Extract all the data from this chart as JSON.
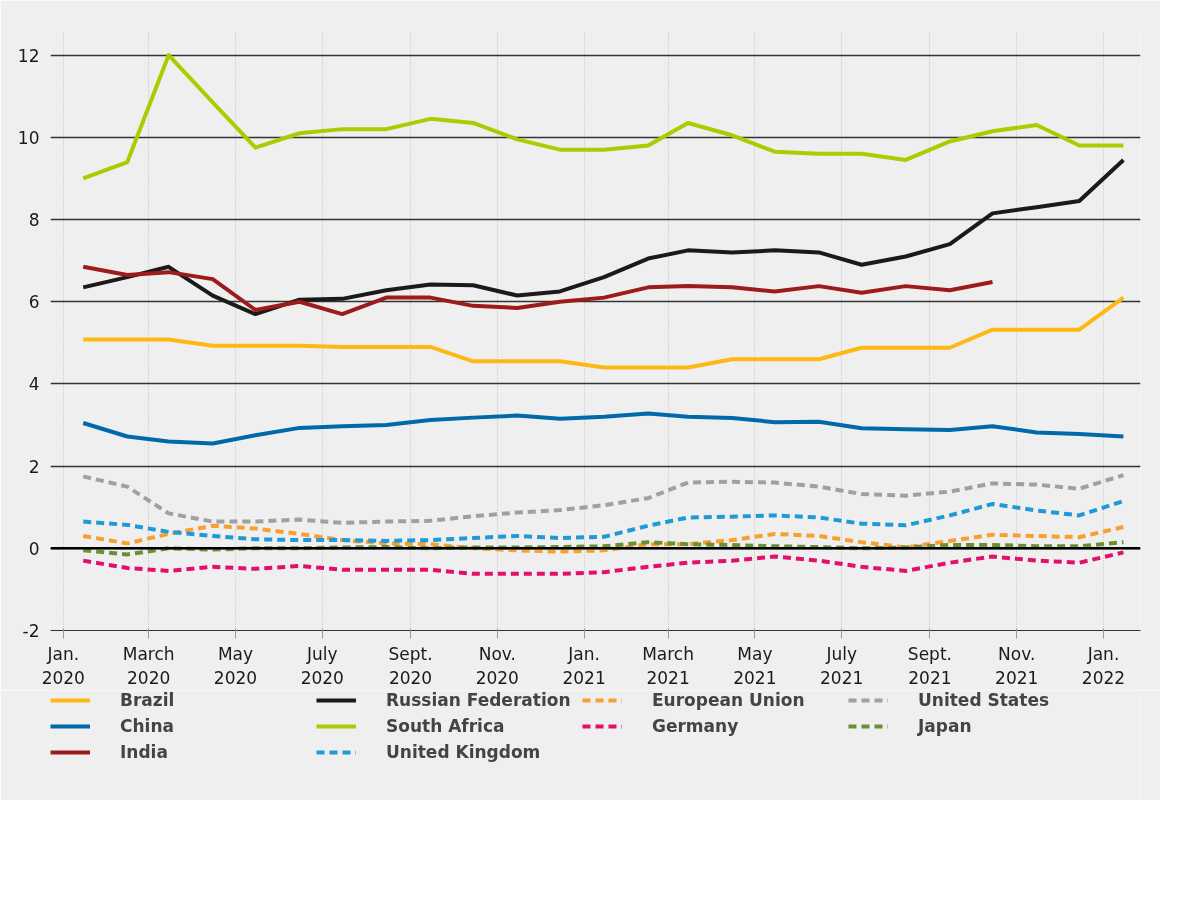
{
  "chart_data": {
    "type": "line",
    "x": [
      "2020-01-15",
      "2020-02-15",
      "2020-03-15",
      "2020-04-15",
      "2020-05-15",
      "2020-06-15",
      "2020-07-15",
      "2020-08-15",
      "2020-09-15",
      "2020-10-15",
      "2020-11-15",
      "2020-12-15",
      "2021-01-15",
      "2021-02-15",
      "2021-03-15",
      "2021-04-15",
      "2021-05-15",
      "2021-06-15",
      "2021-07-15",
      "2021-08-15",
      "2021-09-15",
      "2021-10-15",
      "2021-11-15",
      "2021-12-15",
      "2022-01-15"
    ],
    "xlim": [
      "2019-12-23",
      "2022-01-27"
    ],
    "xticks": [
      {
        "value": "2020-01-01",
        "label": "Jan.\n2020"
      },
      {
        "value": "2020-03-01",
        "label": "March\n2020"
      },
      {
        "value": "2020-05-01",
        "label": "May\n2020"
      },
      {
        "value": "2020-07-01",
        "label": "July\n2020"
      },
      {
        "value": "2020-09-01",
        "label": "Sept.\n2020"
      },
      {
        "value": "2020-11-01",
        "label": "Nov.\n2020"
      },
      {
        "value": "2021-01-01",
        "label": "Jan.\n2021"
      },
      {
        "value": "2021-03-01",
        "label": "March\n2021"
      },
      {
        "value": "2021-05-01",
        "label": "May\n2021"
      },
      {
        "value": "2021-07-01",
        "label": "July\n2021"
      },
      {
        "value": "2021-09-01",
        "label": "Sept.\n2021"
      },
      {
        "value": "2021-11-01",
        "label": "Nov.\n2021"
      },
      {
        "value": "2022-01-01",
        "label": "Jan.\n2022"
      }
    ],
    "ylim": [
      -2,
      12.6
    ],
    "yticks": [
      -2,
      0,
      2,
      4,
      6,
      8,
      10,
      12
    ],
    "grid": true,
    "legend": "bottom",
    "ref_lines": [
      {
        "axis": "y",
        "value": 0,
        "color": "#000000"
      }
    ],
    "series": [
      {
        "name": "Brazil",
        "color": "#fdb913",
        "line_style": "solid",
        "values": [
          5.08,
          5.08,
          5.08,
          4.93,
          4.93,
          4.93,
          4.9,
          4.9,
          4.9,
          4.55,
          4.55,
          4.55,
          4.4,
          4.4,
          4.4,
          4.6,
          4.6,
          4.6,
          4.88,
          4.88,
          4.88,
          5.32,
          5.32,
          5.32,
          6.1
        ]
      },
      {
        "name": "Russian Federation",
        "color": "#1a1a1a",
        "line_style": "solid",
        "values": [
          6.35,
          6.6,
          6.85,
          6.15,
          5.7,
          6.05,
          6.07,
          6.28,
          6.42,
          6.4,
          6.15,
          6.25,
          6.6,
          7.05,
          7.25,
          7.2,
          7.25,
          7.2,
          6.9,
          7.1,
          7.4,
          8.15,
          8.3,
          8.45,
          9.45
        ]
      },
      {
        "name": "European Union",
        "color": "#f7a030",
        "line_style": "dashed",
        "values": [
          0.3,
          0.12,
          0.35,
          0.55,
          0.48,
          0.35,
          0.2,
          0.12,
          0.1,
          0.0,
          -0.05,
          -0.08,
          -0.05,
          0.1,
          0.1,
          0.2,
          0.35,
          0.3,
          0.15,
          0.02,
          0.18,
          0.33,
          0.3,
          0.27,
          0.52
        ]
      },
      {
        "name": "United States",
        "color": "#a0a0a0",
        "line_style": "dashed",
        "values": [
          1.75,
          1.5,
          0.85,
          0.65,
          0.65,
          0.7,
          0.62,
          0.65,
          0.67,
          0.78,
          0.87,
          0.93,
          1.05,
          1.22,
          1.6,
          1.62,
          1.6,
          1.5,
          1.32,
          1.28,
          1.38,
          1.58,
          1.55,
          1.45,
          1.78
        ]
      },
      {
        "name": "China",
        "color": "#0069aa",
        "line_style": "solid",
        "values": [
          3.05,
          2.72,
          2.6,
          2.55,
          2.75,
          2.93,
          2.97,
          3.0,
          3.12,
          3.18,
          3.23,
          3.15,
          3.2,
          3.28,
          3.2,
          3.17,
          3.07,
          3.08,
          2.92,
          2.9,
          2.88,
          2.97,
          2.82,
          2.78,
          2.72
        ]
      },
      {
        "name": "South Africa",
        "color": "#aacc00",
        "line_style": "solid",
        "values": [
          9.0,
          9.4,
          12.0,
          10.85,
          9.75,
          10.1,
          10.2,
          10.2,
          10.45,
          10.35,
          9.95,
          9.7,
          9.7,
          9.8,
          10.35,
          10.05,
          9.65,
          9.6,
          9.6,
          9.45,
          9.9,
          10.15,
          10.3,
          9.8,
          9.8
        ]
      },
      {
        "name": "Germany",
        "color": "#e2106b",
        "line_style": "dashed",
        "values": [
          -0.3,
          -0.48,
          -0.55,
          -0.45,
          -0.5,
          -0.43,
          -0.52,
          -0.52,
          -0.52,
          -0.62,
          -0.62,
          -0.62,
          -0.58,
          -0.45,
          -0.35,
          -0.3,
          -0.2,
          -0.3,
          -0.45,
          -0.55,
          -0.35,
          -0.2,
          -0.3,
          -0.35,
          -0.1
        ]
      },
      {
        "name": "Japan",
        "color": "#6a9030",
        "line_style": "dashed",
        "values": [
          -0.05,
          -0.15,
          0.0,
          -0.03,
          0.0,
          0.0,
          0.02,
          0.03,
          0.0,
          0.02,
          0.02,
          0.03,
          0.05,
          0.15,
          0.1,
          0.08,
          0.05,
          0.03,
          0.0,
          0.02,
          0.08,
          0.08,
          0.05,
          0.05,
          0.15
        ]
      },
      {
        "name": "India",
        "color": "#9e1b1b",
        "line_style": "solid",
        "values": [
          6.85,
          6.65,
          6.72,
          6.55,
          5.8,
          6.0,
          5.7,
          6.1,
          6.1,
          5.9,
          5.85,
          6.0,
          6.1,
          6.35,
          6.38,
          6.35,
          6.25,
          6.38,
          6.22,
          6.38,
          6.28,
          6.48,
          null,
          null,
          null
        ]
      },
      {
        "name": "United Kingdom",
        "color": "#1e9ad6",
        "line_style": "dashed",
        "values": [
          0.65,
          0.57,
          0.4,
          0.3,
          0.22,
          0.2,
          0.2,
          0.18,
          0.2,
          0.25,
          0.3,
          0.25,
          0.28,
          0.55,
          0.75,
          0.77,
          0.8,
          0.75,
          0.6,
          0.56,
          0.8,
          1.08,
          0.92,
          0.8,
          1.15
        ]
      }
    ]
  }
}
